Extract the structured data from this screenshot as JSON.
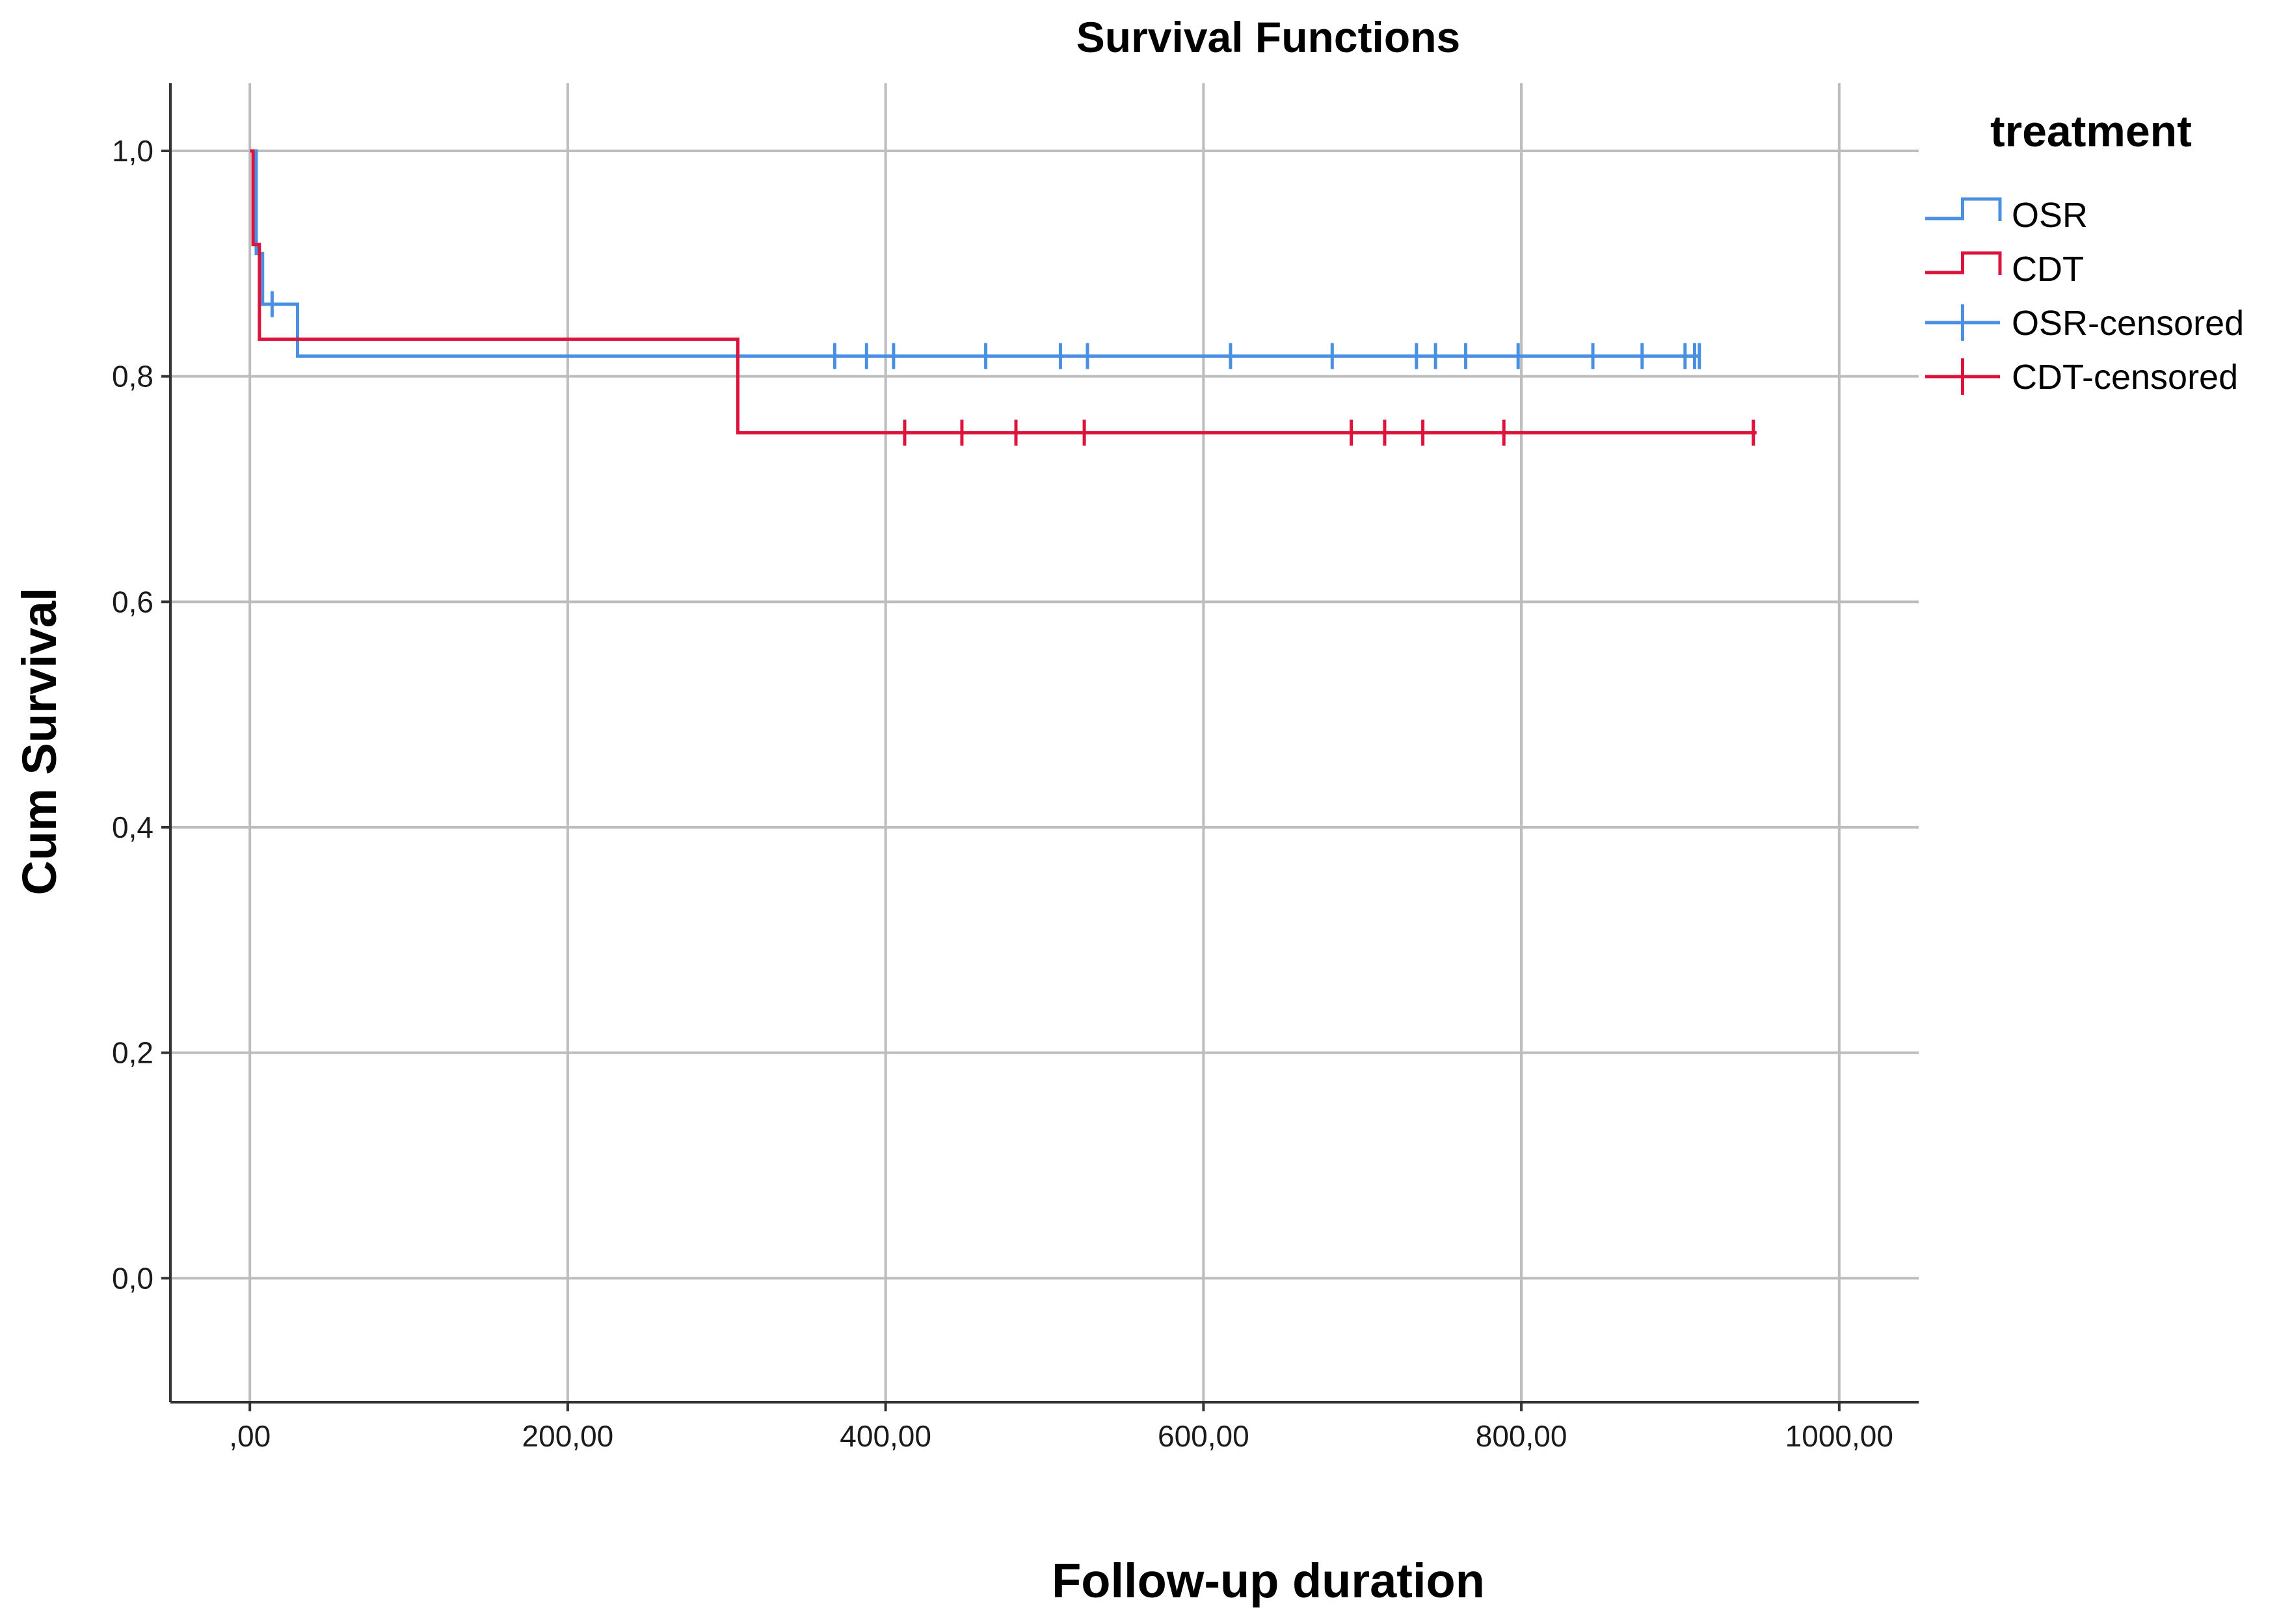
{
  "chart_data": {
    "type": "line",
    "subtype": "kaplan-meier step",
    "title": "Survival Functions",
    "xlabel": "Follow-up duration",
    "ylabel": "Cum Survival",
    "xlim": [
      -50,
      1050
    ],
    "ylim": [
      -0.11,
      1.06
    ],
    "xticks": [
      0,
      200,
      400,
      600,
      800,
      1000
    ],
    "xtick_labels": [
      ",00",
      "200,00",
      "400,00",
      "600,00",
      "800,00",
      "1000,00"
    ],
    "yticks": [
      0.0,
      0.2,
      0.4,
      0.6,
      0.8,
      1.0
    ],
    "ytick_labels": [
      "0,0",
      "0,2",
      "0,4",
      "0,6",
      "0,8",
      "1,0"
    ],
    "grid": true,
    "legend": {
      "title": "treatment",
      "position": "right",
      "entries": [
        {
          "label": "OSR",
          "kind": "step",
          "color": "#4a90e2"
        },
        {
          "label": "CDT",
          "kind": "step",
          "color": "#dc143c"
        },
        {
          "label": "OSR-censored",
          "kind": "censor",
          "color": "#4a90e2"
        },
        {
          "label": "CDT-censored",
          "kind": "censor",
          "color": "#dc143c"
        }
      ]
    },
    "series": [
      {
        "name": "OSR",
        "color": "#4a90e2",
        "steps": [
          [
            0,
            1.0
          ],
          [
            4,
            0.909
          ],
          [
            8,
            0.864
          ],
          [
            30,
            0.818
          ],
          [
            912,
            0.818
          ]
        ],
        "censored": [
          [
            14,
            0.864
          ],
          [
            368,
            0.818
          ],
          [
            388,
            0.818
          ],
          [
            405,
            0.818
          ],
          [
            463,
            0.818
          ],
          [
            510,
            0.818
          ],
          [
            527,
            0.818
          ],
          [
            617,
            0.818
          ],
          [
            681,
            0.818
          ],
          [
            734,
            0.818
          ],
          [
            746,
            0.818
          ],
          [
            765,
            0.818
          ],
          [
            798,
            0.818
          ],
          [
            845,
            0.818
          ],
          [
            876,
            0.818
          ],
          [
            903,
            0.818
          ],
          [
            909,
            0.818
          ],
          [
            912,
            0.818
          ]
        ]
      },
      {
        "name": "CDT",
        "color": "#dc143c",
        "steps": [
          [
            0,
            1.0
          ],
          [
            2,
            0.917
          ],
          [
            6,
            0.833
          ],
          [
            307,
            0.75
          ],
          [
            948,
            0.75
          ]
        ],
        "censored": [
          [
            412,
            0.75
          ],
          [
            448,
            0.75
          ],
          [
            482,
            0.75
          ],
          [
            525,
            0.75
          ],
          [
            693,
            0.75
          ],
          [
            714,
            0.75
          ],
          [
            738,
            0.75
          ],
          [
            789,
            0.75
          ],
          [
            946,
            0.75
          ]
        ]
      }
    ]
  }
}
